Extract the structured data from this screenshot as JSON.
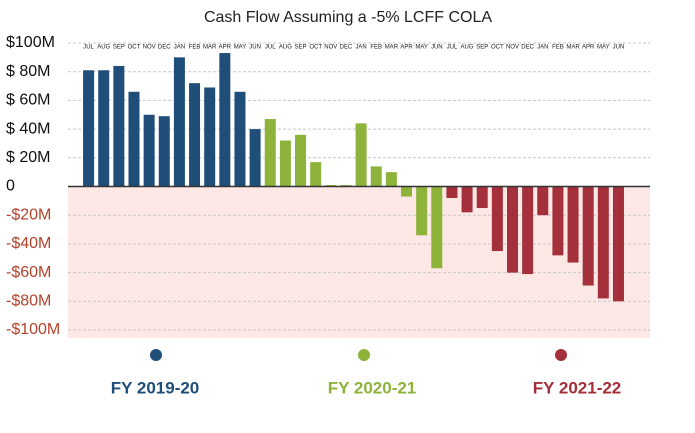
{
  "chart_data": {
    "type": "bar",
    "title": "Cash Flow Assuming a -5% LCFF COLA",
    "categories": [
      "JUL",
      "AUG",
      "SEP",
      "OCT",
      "NOV",
      "DEC",
      "JAN",
      "FEB",
      "MAR",
      "APR",
      "MAY",
      "JUN",
      "JUL",
      "AUG",
      "SEP",
      "OCT",
      "NOV",
      "DEC",
      "JAN",
      "FEB",
      "MAR",
      "APR",
      "MAY",
      "JUN",
      "JUL",
      "AUG",
      "SEP",
      "OCT",
      "NOV",
      "DEC",
      "JAN",
      "FEB",
      "MAR",
      "APR",
      "MAY",
      "JUN"
    ],
    "series": [
      {
        "name": "FY 2019-20",
        "color": "#1f4e79",
        "values": [
          81,
          81,
          84,
          66,
          50,
          49,
          90,
          72,
          69,
          93,
          66,
          40,
          null,
          null,
          null,
          null,
          null,
          null,
          null,
          null,
          null,
          null,
          null,
          null,
          null,
          null,
          null,
          null,
          null,
          null,
          null,
          null,
          null,
          null,
          null,
          null
        ]
      },
      {
        "name": "FY 2020-21",
        "color": "#8db33a",
        "values": [
          null,
          null,
          null,
          null,
          null,
          null,
          null,
          null,
          null,
          null,
          null,
          null,
          47,
          32,
          36,
          17,
          1,
          1,
          44,
          14,
          10,
          -7,
          -34,
          -57,
          null,
          null,
          null,
          null,
          null,
          null,
          null,
          null,
          null,
          null,
          null,
          null
        ]
      },
      {
        "name": "FY 2021-22",
        "color": "#a3303a",
        "values": [
          null,
          null,
          null,
          null,
          null,
          null,
          null,
          null,
          null,
          null,
          null,
          null,
          null,
          null,
          null,
          null,
          null,
          null,
          null,
          null,
          null,
          null,
          null,
          null,
          -8,
          -18,
          -15,
          -45,
          -60,
          -61,
          -20,
          -48,
          -53,
          -69,
          -78,
          -80
        ]
      }
    ],
    "ylim": [
      -100,
      100
    ],
    "yticks": [
      {
        "value": 100,
        "label": "$100M"
      },
      {
        "value": 80,
        "label": "$ 80M"
      },
      {
        "value": 60,
        "label": "$ 60M"
      },
      {
        "value": 40,
        "label": "$ 40M"
      },
      {
        "value": 20,
        "label": "$ 20M"
      },
      0,
      {
        "value": -20,
        "label": "-$20M"
      },
      {
        "value": -40,
        "label": "-$40M"
      },
      {
        "value": -60,
        "label": "-$60M"
      },
      {
        "value": -80,
        "label": "-$80M"
      },
      {
        "value": -100,
        "label": "-$100M"
      }
    ],
    "grid": true
  }
}
